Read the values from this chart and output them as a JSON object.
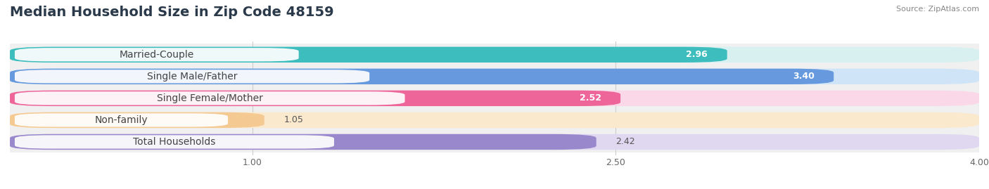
{
  "title": "Median Household Size in Zip Code 48159",
  "source": "Source: ZipAtlas.com",
  "categories": [
    "Married-Couple",
    "Single Male/Father",
    "Single Female/Mother",
    "Non-family",
    "Total Households"
  ],
  "values": [
    2.96,
    3.4,
    2.52,
    1.05,
    2.42
  ],
  "bar_colors": [
    "#3DBDBD",
    "#6699DD",
    "#EE6699",
    "#F5C992",
    "#9988CC"
  ],
  "bar_bg_colors": [
    "#D8F0F0",
    "#D0E4F8",
    "#FAD8E8",
    "#FBE9CE",
    "#E0D8F0"
  ],
  "row_bg_color": "#f0f0f0",
  "xlim": [
    0.0,
    4.0
  ],
  "xticks": [
    1.0,
    2.5,
    4.0
  ],
  "title_fontsize": 14,
  "label_fontsize": 10,
  "value_fontsize": 9,
  "background_color": "#ffffff"
}
